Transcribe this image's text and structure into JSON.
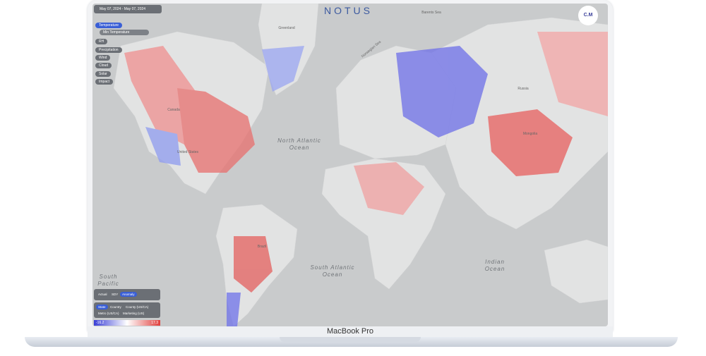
{
  "header": {
    "date_range": "May 07, 2024 - May 07, 2024",
    "logo": "NOTUS",
    "avatar": "C.M"
  },
  "menu": {
    "items": [
      "Temperature",
      "Min Temperature",
      "RH",
      "Precipitation",
      "Wind",
      "Cloud",
      "Solar",
      "Impact"
    ]
  },
  "view_modes": [
    "Actual",
    "SDY",
    "Anomaly"
  ],
  "regions": [
    "State",
    "Country",
    "County (US/CA)",
    "Metro (US/CA)",
    "Marketing (US)"
  ],
  "legend": {
    "min": "-16.2",
    "max": "17.3"
  },
  "map_labels": [
    "North Atlantic Ocean",
    "South Atlantic Ocean",
    "Indian Ocean",
    "South Pacific",
    "Barents Sea",
    "Norwegian Sea",
    "Greenland",
    "Russia",
    "Mongolia",
    "United States",
    "Canada",
    "Brazil"
  ],
  "device": "MacBook Pro"
}
